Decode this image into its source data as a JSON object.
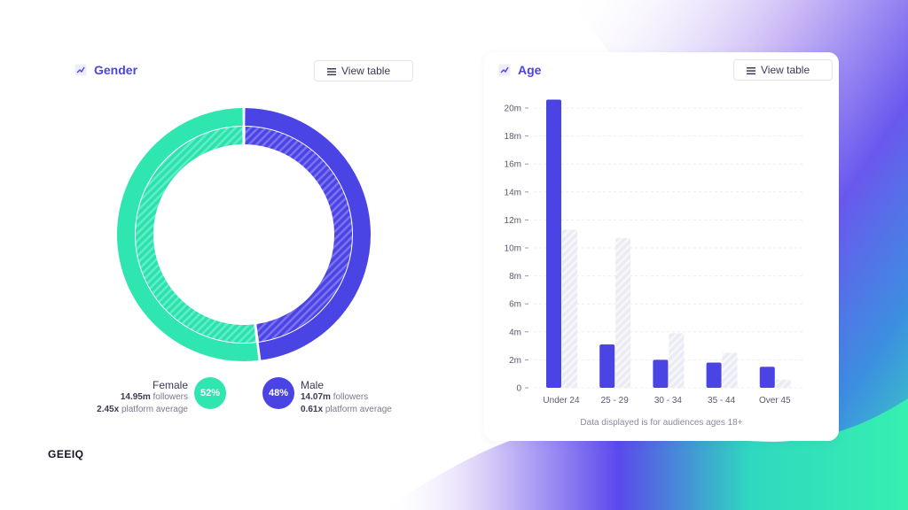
{
  "brand": {
    "logo_text": "GEEIQ"
  },
  "colors": {
    "female": "#30e6b0",
    "male": "#4b44e4",
    "comparison_bar": "#e6e6f2",
    "title_accent": "#4b44e4"
  },
  "gender_panel": {
    "title": "Gender",
    "title_icon": "line-chart-icon",
    "view_table_label": "View table",
    "view_table_icon": "list-icon",
    "female": {
      "label": "Female",
      "percent_label": "52%",
      "followers_value": "14.95m",
      "followers_text": "followers",
      "platform_value": "2.45x",
      "platform_text": "platform average"
    },
    "male": {
      "label": "Male",
      "percent_label": "48%",
      "followers_value": "14.07m",
      "followers_text": "followers",
      "platform_value": "0.61x",
      "platform_text": "platform average"
    }
  },
  "age_panel": {
    "title": "Age",
    "title_icon": "line-chart-icon",
    "view_table_label": "View table",
    "view_table_icon": "list-icon",
    "footnote": "Data displayed is for audiences ages 18+"
  },
  "chart_data": [
    {
      "type": "pie",
      "variant": "double-ring donut",
      "categories": [
        "Female",
        "Male"
      ],
      "series": [
        {
          "ring": "outer",
          "values": [
            52,
            48
          ]
        },
        {
          "ring": "inner",
          "values": [
            52,
            48
          ]
        }
      ],
      "annotations": [
        "52%",
        "48%"
      ]
    },
    {
      "type": "bar",
      "categories": [
        "Under 24",
        "25 - 29",
        "30 - 34",
        "35 - 44",
        "Over 45"
      ],
      "series": [
        {
          "values": [
            20.6,
            3.1,
            2.0,
            1.8,
            1.5
          ]
        },
        {
          "values": [
            11.3,
            10.7,
            3.9,
            2.5,
            0.6
          ]
        }
      ],
      "ylim": [
        0,
        20
      ],
      "yticks": [
        "0",
        "2m",
        "4m",
        "6m",
        "8m",
        "10m",
        "12m",
        "14m",
        "16m",
        "18m",
        "20m"
      ],
      "grid": true
    }
  ]
}
